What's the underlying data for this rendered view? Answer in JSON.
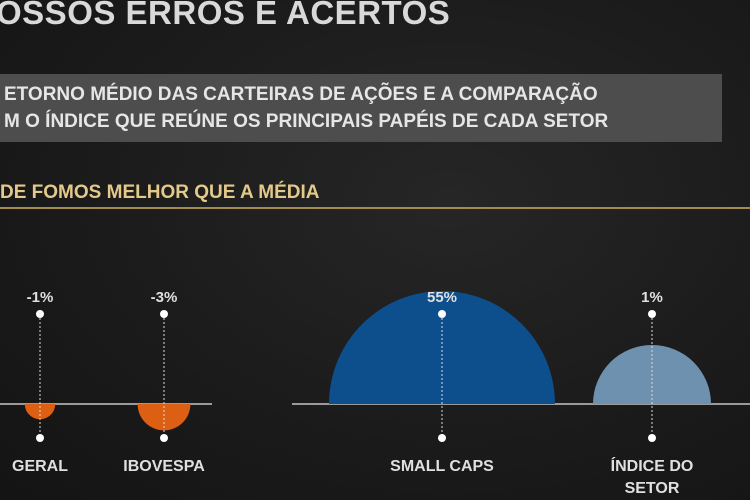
{
  "header": {
    "title": "OSSOS ERROS E ACERTOS",
    "subtitle_line1": "ETORNO MÉDIO DAS CARTEIRAS DE AÇÕES  E A COMPARAÇÃO",
    "subtitle_line2": "M O ÍNDICE QUE REÚNE OS PRINCIPAIS PAPÉIS DE CADA SETOR",
    "section": "DE FOMOS MELHOR QUE A MÉDIA"
  },
  "colors": {
    "negative": "#dd5f14",
    "small_caps": "#0d4f8c",
    "indice_setor": "#6e91b0",
    "axis": "#9a9a9a"
  },
  "chart_data": [
    {
      "type": "bar",
      "categories": [
        "GERAL",
        "IBOVESPA"
      ],
      "values": [
        -1,
        -3
      ],
      "value_labels": [
        "-1%",
        "-3%"
      ],
      "units": "%"
    },
    {
      "type": "bar",
      "categories": [
        "SMALL CAPS",
        "ÍNDICE DO SETOR"
      ],
      "category_lines": [
        [
          "SMALL CAPS"
        ],
        [
          "ÍNDICE DO",
          "SETOR"
        ]
      ],
      "values": [
        55,
        1
      ],
      "value_labels": [
        "55%",
        "1%"
      ],
      "units": "%"
    }
  ]
}
